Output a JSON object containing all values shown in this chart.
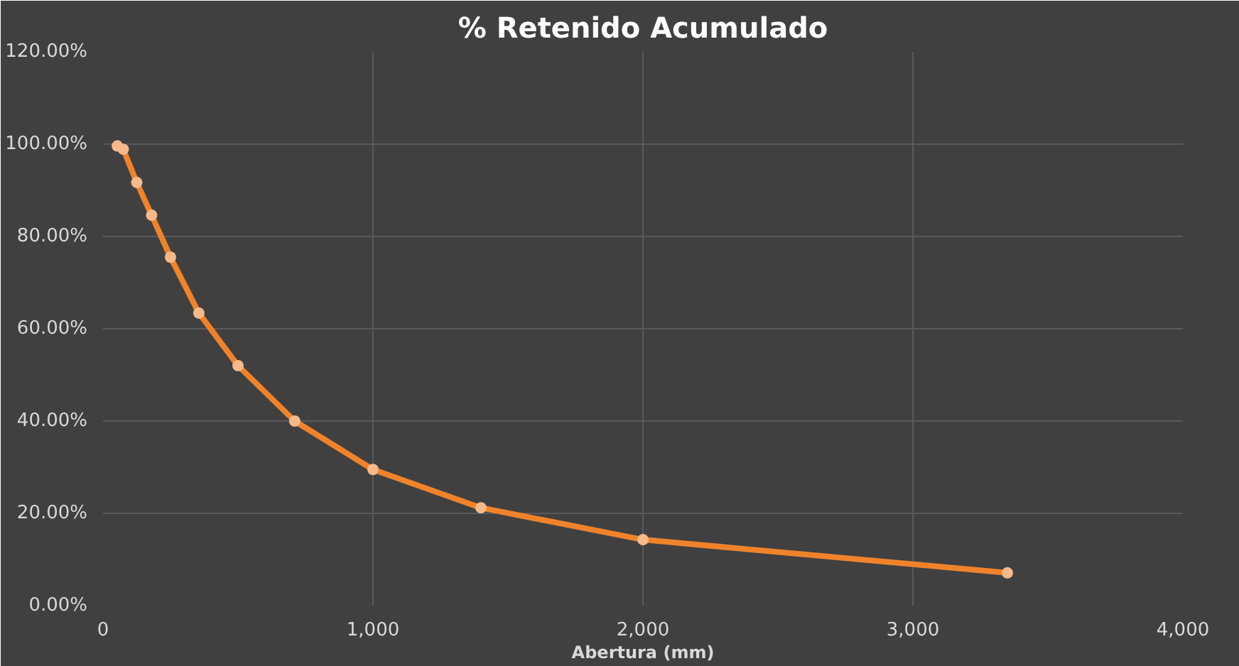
{
  "chart_data": {
    "type": "line",
    "title": "% Retenido Acumulado",
    "xlabel": "Abertura (mm)",
    "x": [
      53,
      75,
      125,
      180,
      250,
      355,
      500,
      710,
      1000,
      1400,
      2000,
      3350
    ],
    "series": [
      {
        "color": "#f0832a",
        "values": [
          99.6,
          98.9,
          91.7,
          84.6,
          75.5,
          63.4,
          52.0,
          40.0,
          29.5,
          21.2,
          14.3,
          7.1
        ]
      }
    ],
    "xlim": [
      0,
      4000
    ],
    "xticks": [
      0,
      {
        "value": 1000,
        "label": "1,000"
      },
      {
        "value": 2000,
        "label": "2,000"
      },
      {
        "value": 3000,
        "label": "3,000"
      },
      {
        "value": 4000,
        "label": "4,000"
      }
    ],
    "ylim": [
      0,
      120
    ],
    "yticks": [
      {
        "value": 0,
        "label": "0.00%"
      },
      {
        "value": 20,
        "label": "20.00%"
      },
      {
        "value": 40,
        "label": "40.00%"
      },
      {
        "value": 60,
        "label": "60.00%"
      },
      {
        "value": 80,
        "label": "80.00%"
      },
      {
        "value": 100,
        "label": "100.00%"
      },
      {
        "value": 120,
        "label": "120.00%"
      }
    ],
    "grid": true,
    "marker": "circle",
    "line_style": "solid"
  }
}
